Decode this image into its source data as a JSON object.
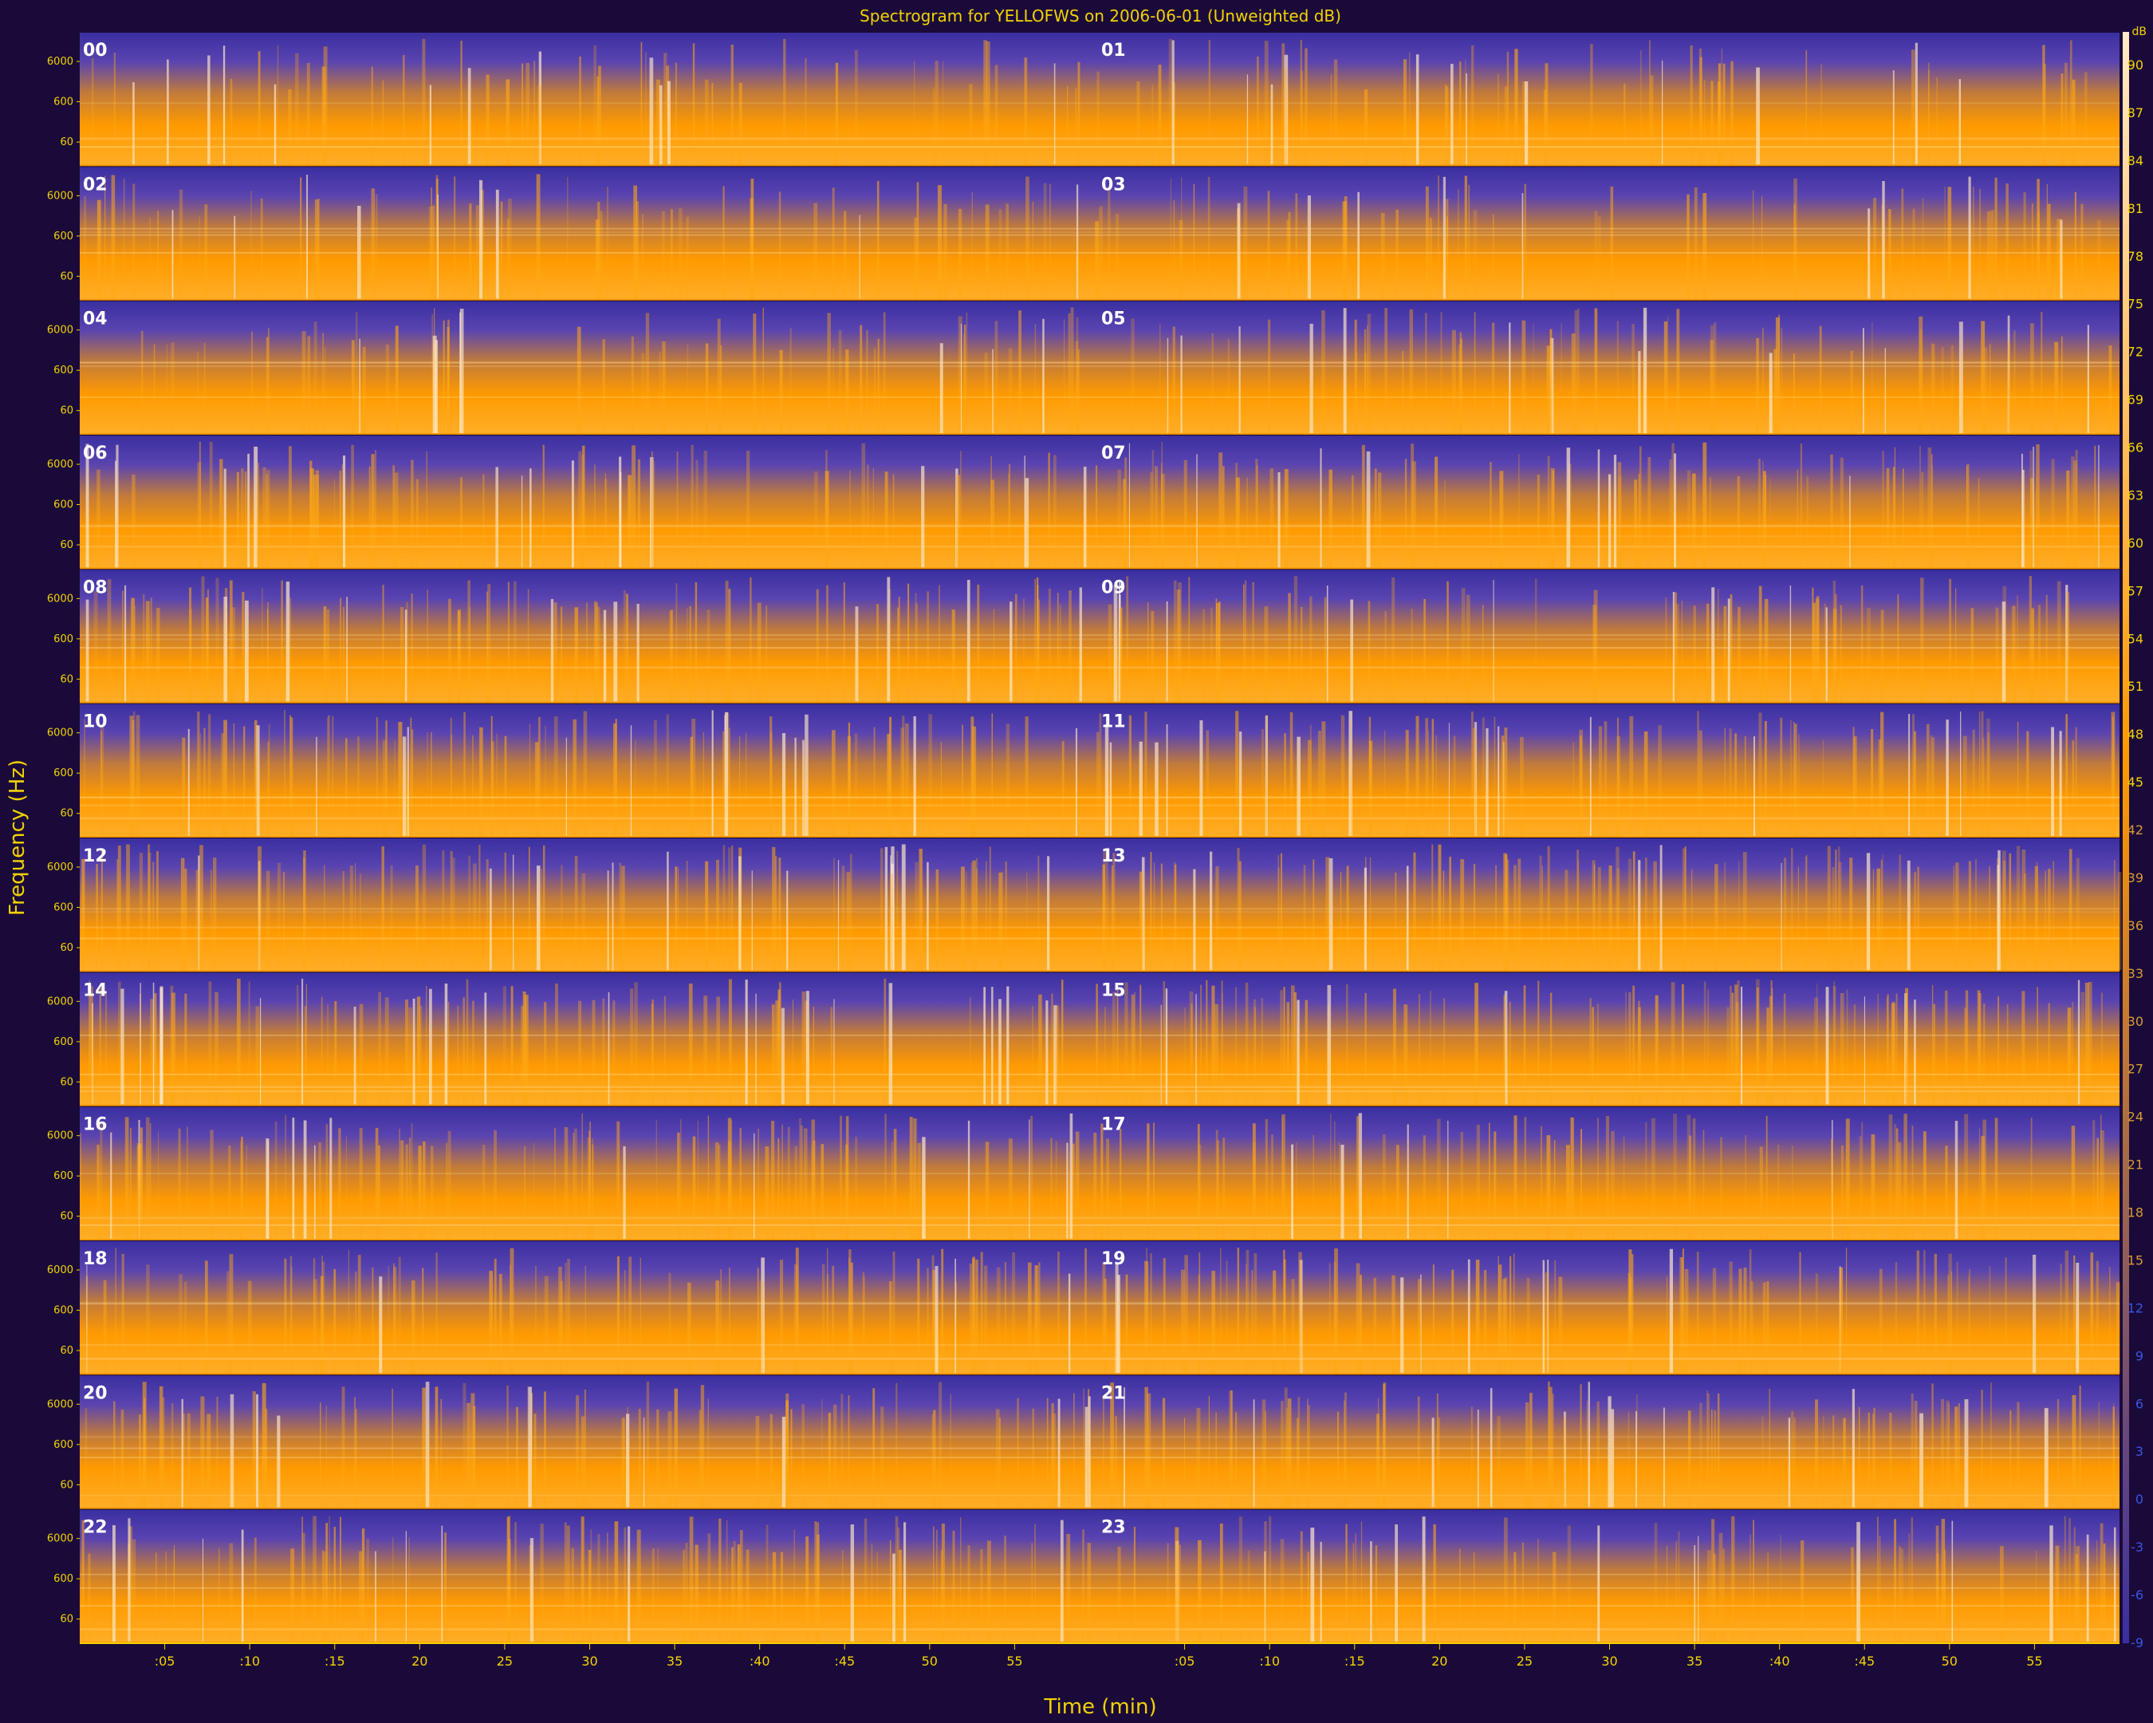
{
  "chart_data": {
    "type": "heatmap",
    "title": "Spectrogram for YELLOFWS on 2006-06-01 (Unweighted dB)",
    "xlabel": "Time (min)",
    "ylabel": "Frequency (Hz)",
    "x_tick_labels": [
      ":05",
      ":10",
      ":15",
      "20",
      "25",
      "30",
      "35",
      ":40",
      ":45",
      "50",
      "55"
    ],
    "y_tick_labels": [
      "6000",
      "600",
      "60"
    ],
    "colorbar": {
      "unit": "dB",
      "ticks": [
        90,
        87,
        84,
        81,
        78,
        75,
        72,
        69,
        66,
        63,
        60,
        57,
        54,
        51,
        48,
        45,
        42,
        39,
        36,
        33,
        30,
        27,
        24,
        21,
        18,
        15,
        12,
        9,
        6,
        3,
        0,
        -3,
        -6,
        -9
      ],
      "range": [
        -9,
        90
      ],
      "colors": [
        "#3a2fa0",
        "#ff9a00",
        "#ffe9c8"
      ]
    },
    "rows": [
      {
        "left": "00",
        "right": "01",
        "level": 0.3
      },
      {
        "left": "02",
        "right": "03",
        "level": 0.34
      },
      {
        "left": "04",
        "right": "05",
        "level": 0.36
      },
      {
        "left": "06",
        "right": "07",
        "level": 0.48
      },
      {
        "left": "08",
        "right": "09",
        "level": 0.52
      },
      {
        "left": "10",
        "right": "11",
        "level": 0.56
      },
      {
        "left": "12",
        "right": "13",
        "level": 0.6
      },
      {
        "left": "14",
        "right": "15",
        "level": 0.6
      },
      {
        "left": "16",
        "right": "17",
        "level": 0.54
      },
      {
        "left": "18",
        "right": "19",
        "level": 0.52
      },
      {
        "left": "20",
        "right": "21",
        "level": 0.5
      },
      {
        "left": "22",
        "right": "23",
        "level": 0.48
      }
    ]
  },
  "colors": {
    "background": "#1a0a3a",
    "text": "#f2d200",
    "low": "#3a2fa0",
    "high": "#ff9a00",
    "peak": "#ffe9c8"
  }
}
